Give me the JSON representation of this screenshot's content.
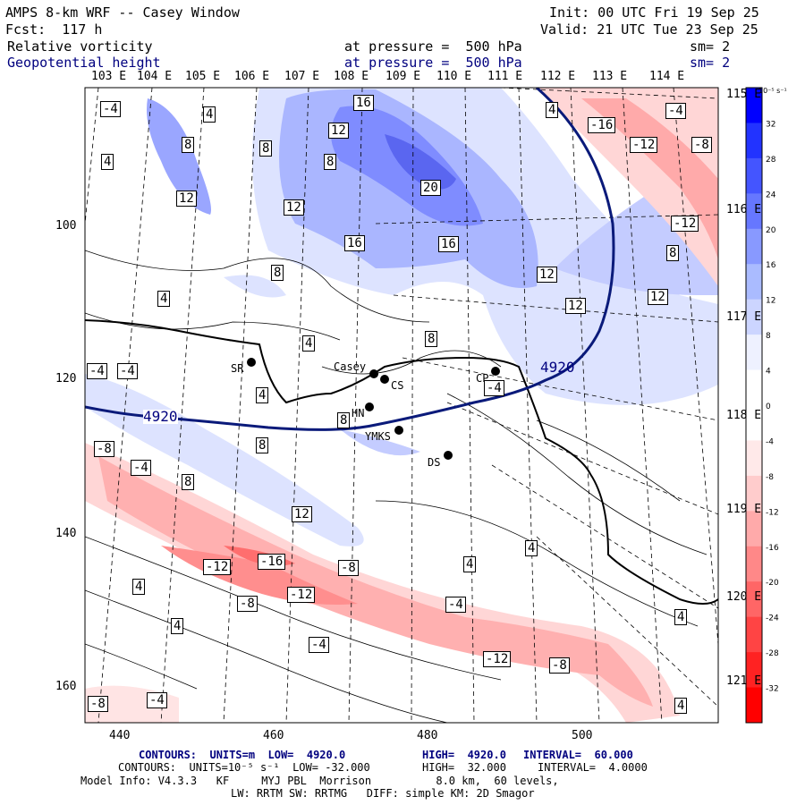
{
  "header": {
    "title": "AMPS 8-km WRF -- Casey Window",
    "init": "Init: 00 UTC Fri 19 Sep 25",
    "fcst": "Fcst:  117 h",
    "valid": "Valid: 21 UTC Tue 23 Sep 25",
    "field1": "Relative vorticity",
    "field1_level": "at pressure =  500 hPa",
    "field1_sm": "sm= 2",
    "field2": "Geopotential height",
    "field2_level": "at pressure =  500 hPa",
    "field2_sm": "sm= 2"
  },
  "map": {
    "top_lon_labels": [
      "103 E",
      "104 E",
      "105 E",
      "106 E",
      "107 E",
      "108 E",
      "109 E",
      "110 E",
      "111 E",
      "112 E",
      "113 E",
      "114 E"
    ],
    "right_lat_labels": [
      "115 E",
      "116 E",
      "117 E",
      "118 E",
      "119 E",
      "120 E",
      "121 E"
    ],
    "left_y_ticks": [
      "100",
      "120",
      "140",
      "160"
    ],
    "bottom_x_ticks": [
      "440",
      "460",
      "480",
      "500"
    ],
    "stations": [
      {
        "name": "SR"
      },
      {
        "name": "Casey"
      },
      {
        "name": "CS"
      },
      {
        "name": "CP"
      },
      {
        "name": "HN"
      },
      {
        "name": "YMKS"
      },
      {
        "name": "DS"
      }
    ],
    "height_contour_label": "4920",
    "contour_labels": [
      "-4",
      "4",
      "8",
      "-8",
      "12",
      "-12",
      "16",
      "-16",
      "20"
    ],
    "colors": {
      "height_contour": "#0a1a7a",
      "positive_fill": "#4455ee",
      "negative_fill": "#ee4444",
      "coast": "#000000"
    }
  },
  "colorbar": {
    "unit": "10⁻⁵ s⁻¹",
    "labels": [
      "32",
      "28",
      "24",
      "20",
      "16",
      "12",
      "8",
      "4",
      "0",
      "-4",
      "-8",
      "-12",
      "-16",
      "-20",
      "-24",
      "-28",
      "-32"
    ],
    "colors": [
      "#0000ff",
      "#2233ff",
      "#4455ff",
      "#6677ff",
      "#8899ff",
      "#aabbff",
      "#ccd5ff",
      "#eef1ff",
      "#ffffff",
      "#ffffff",
      "#ffe9e9",
      "#ffcccc",
      "#ffaaaa",
      "#ff8888",
      "#ff6666",
      "#ff4444",
      "#ff2222",
      "#ff0000"
    ]
  },
  "footer": {
    "line1_prefix": "CONTOURS:  UNITS=m  LOW=  4920.0",
    "line1_high": "HIGH=  4920.0",
    "line1_interval": "INTERVAL=  60.000",
    "line2_prefix": "CONTOURS:  UNITS=10⁻⁵ s⁻¹  LOW= -32.000",
    "line2_high": "HIGH=  32.000",
    "line2_interval": "INTERVAL=  4.0000",
    "line3": "Model Info: V4.3.3   KF     MYJ PBL  Morrison          8.0 km,  60 levels,",
    "line4": "LW: RRTM SW: RRTMG   DIFF: simple KM: 2D Smagor"
  }
}
